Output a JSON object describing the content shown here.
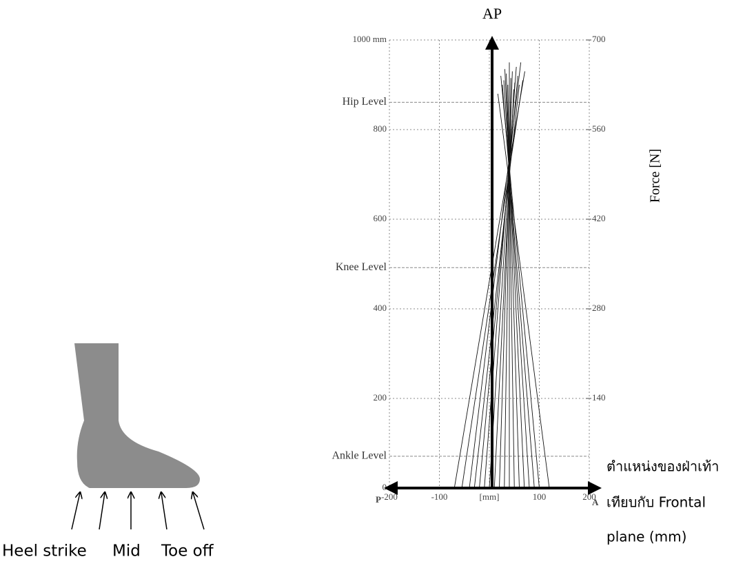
{
  "chart_data": {
    "type": "butterfly",
    "title": "AP",
    "y2label": "Force [N]",
    "xlim": [
      -200,
      200
    ],
    "ylim": [
      0,
      1000
    ],
    "y2lim": [
      0,
      700
    ],
    "xticks": [
      -200,
      -100,
      {
        "value": 0,
        "label": "[mm]"
      },
      100,
      200
    ],
    "yticks": [
      {
        "value": 1000,
        "label": "1000 mm"
      },
      800,
      600,
      400,
      200,
      0
    ],
    "y2ticks": [
      700,
      560,
      420,
      280,
      140
    ],
    "x_end_labels": [
      "P",
      "A"
    ],
    "levels": [
      {
        "name": "Hip Level",
        "value": 861
      },
      {
        "name": "Knee Level",
        "value": 492
      },
      {
        "name": "Ankle Level",
        "value": 71
      }
    ],
    "grid": true,
    "color": "#111111",
    "vectors": {
      "cop_x": [
        -70,
        -55,
        -40,
        -30,
        -20,
        -10,
        0,
        10,
        20,
        30,
        40,
        50,
        60,
        70,
        80,
        90,
        100,
        120
      ],
      "tip_x": [
        71,
        67,
        63,
        60,
        57,
        54,
        51,
        49,
        46,
        43,
        40,
        37,
        34,
        31,
        29,
        26,
        23,
        17
      ],
      "tip_y": [
        930,
        910,
        950,
        900,
        920,
        940,
        905,
        890,
        930,
        915,
        950,
        900,
        925,
        935,
        910,
        900,
        920,
        880
      ]
    }
  },
  "foot_labels": [
    "Heel strike",
    "Mid",
    "Toe off"
  ],
  "caption": [
    "ตำแหน่งของฝ่าเท้า",
    "เทียบกับ Frontal",
    "plane (mm)"
  ]
}
